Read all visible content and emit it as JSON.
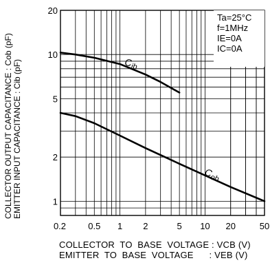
{
  "chart_data": {
    "type": "line",
    "x_scale": "log",
    "y_scale": "log",
    "xlim": [
      0.2,
      50
    ],
    "ylim": [
      0.8,
      20
    ],
    "x_ticks": [
      0.2,
      0.5,
      1,
      2,
      5,
      10,
      20,
      50
    ],
    "x_tick_labels": [
      "0.2",
      "0.5",
      "1",
      "2",
      "5",
      "10",
      "20",
      "50"
    ],
    "y_ticks": [
      1,
      2,
      5,
      10,
      20
    ],
    "y_tick_labels": [
      "1",
      "2",
      "5",
      "10",
      "20"
    ],
    "grid": true,
    "series": [
      {
        "name": "Cib",
        "x": [
          0.2,
          0.3,
          0.5,
          1,
          2,
          3,
          5
        ],
        "y": [
          10.3,
          10.0,
          9.5,
          8.6,
          7.3,
          6.5,
          5.5
        ]
      },
      {
        "name": "Cob",
        "x": [
          0.2,
          0.3,
          0.5,
          1,
          2,
          5,
          10,
          20,
          50
        ],
        "y": [
          4.0,
          3.8,
          3.4,
          2.8,
          2.3,
          1.8,
          1.5,
          1.25,
          1.0
        ]
      }
    ],
    "series_labels": {
      "cib": "Cib",
      "cob": "Cob"
    },
    "ylabel_line1": "COLLECTOR OUTPUT CAPACITANCE : Cob (pF)",
    "ylabel_line2": "EMITTER INPUT CAPACITANCE : Cib (pF)",
    "xlabel_line1": "COLLECTOR  TO  BASE  VOLTAGE : VCB (V)",
    "xlabel_line2": "EMITTER  TO  BASE  VOLTAGE      : VEB (V)",
    "conditions": [
      "Ta=25°C",
      "f=1MHz",
      "IE=0A",
      "IC=0A"
    ]
  }
}
